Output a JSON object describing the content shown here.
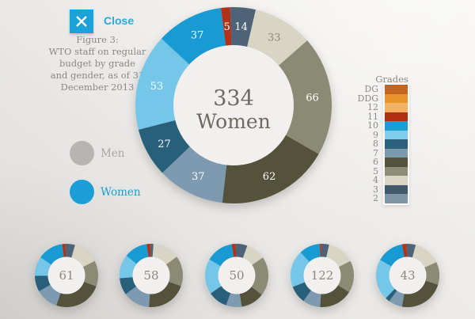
{
  "close": {
    "label": "Close"
  },
  "caption": "Figure 3:\nWTO staff on regular\nbudget by grade\nand gender, as of 31\nDecember 2013",
  "gender_legend": {
    "men": {
      "label": "Men",
      "color": "#b7b5b1"
    },
    "women": {
      "label": "Women",
      "color": "#1b9ed6"
    }
  },
  "grades_legend": {
    "title": "Grades",
    "items": [
      {
        "label": "DG",
        "color": "#c3641f"
      },
      {
        "label": "DDG",
        "color": "#e8942c"
      },
      {
        "label": "12",
        "color": "#f3b163"
      },
      {
        "label": "11",
        "color": "#b02e12"
      },
      {
        "label": "10",
        "color": "#1b9ed6"
      },
      {
        "label": "9",
        "color": "#7fccec"
      },
      {
        "label": "8",
        "color": "#2b617c"
      },
      {
        "label": "7",
        "color": "#7b99ad"
      },
      {
        "label": "6",
        "color": "#53523a"
      },
      {
        "label": "5",
        "color": "#8d8c76"
      },
      {
        "label": "4",
        "color": "#d9d6c6"
      },
      {
        "label": "3",
        "color": "#42586b"
      },
      {
        "label": "2",
        "color": "#7e95a5"
      }
    ]
  },
  "chart_data": {
    "type": "pie",
    "variant": "donut",
    "grade_order": [
      "3",
      "4",
      "5",
      "6",
      "7",
      "8",
      "9",
      "10",
      "11"
    ],
    "grade_colors": {
      "3": "#4e6377",
      "4": "#d8d5c5",
      "5": "#8b8a74",
      "6": "#54523b",
      "7": "#7e9ab0",
      "8": "#28607c",
      "9": "#74c7e8",
      "10": "#189bd3",
      "11": "#b23218"
    },
    "label_colors": {
      "default": "#ffffff",
      "4": "#8a897d"
    },
    "main": {
      "total": "334",
      "total_label": "Women",
      "values": [
        14,
        33,
        66,
        62,
        37,
        27,
        53,
        37,
        5
      ]
    },
    "small": [
      {
        "total": "61",
        "values": [
          3,
          8,
          8,
          15,
          7,
          5,
          6,
          8,
          1
        ]
      },
      {
        "total": "58",
        "values": [
          1,
          8,
          9,
          12,
          8,
          5,
          7,
          7,
          1
        ]
      },
      {
        "total": "50",
        "values": [
          3,
          5,
          10,
          6,
          4,
          5,
          9,
          7,
          1
        ]
      },
      {
        "total": "122",
        "values": [
          5,
          17,
          20,
          21,
          11,
          11,
          23,
          13,
          1
        ]
      },
      {
        "total": "43",
        "values": [
          2,
          6,
          5,
          10,
          3,
          1,
          9,
          6,
          1
        ]
      }
    ]
  }
}
